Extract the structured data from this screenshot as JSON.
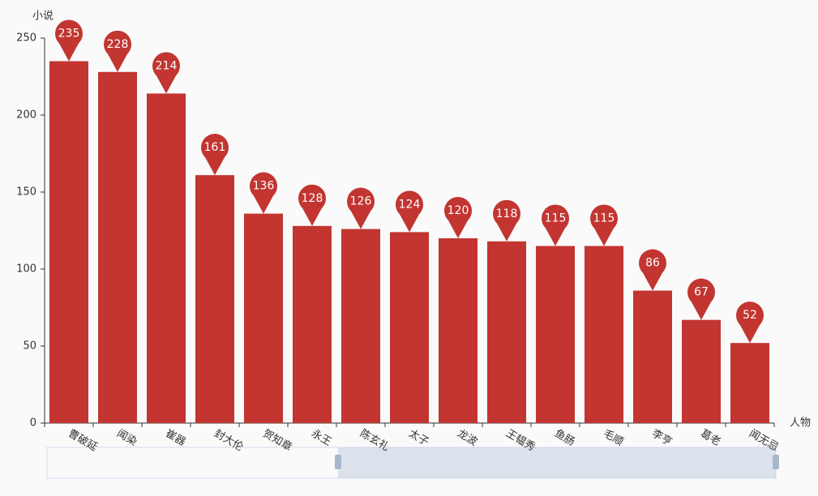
{
  "chart_data": {
    "type": "bar",
    "y_axis_name": "小说",
    "x_axis_name": "人物",
    "categories": [
      "曹破延",
      "闻染",
      "崔器",
      "封大伦",
      "贺知章",
      "永王",
      "陈玄礼",
      "太子",
      "龙波",
      "王韫秀",
      "鱼肠",
      "毛顺",
      "李亨",
      "葛老",
      "闻无忌"
    ],
    "values": [
      235,
      228,
      214,
      161,
      136,
      128,
      126,
      124,
      120,
      118,
      115,
      115,
      86,
      67,
      52
    ],
    "color": "#c23531",
    "ylim": [
      0,
      250
    ],
    "yticks": [
      0,
      50,
      100,
      150,
      200,
      250
    ],
    "grid": false
  }
}
